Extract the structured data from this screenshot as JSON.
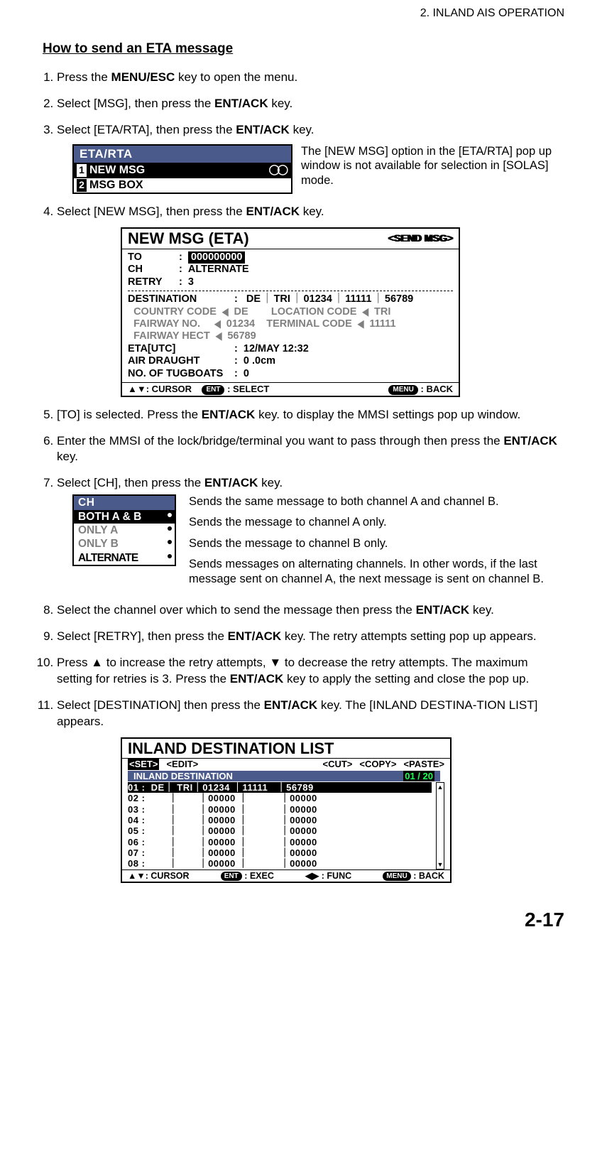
{
  "header": {
    "chapter": "2.  INLAND AIS OPERATION"
  },
  "section_title": "How to send an ETA message",
  "steps": {
    "s1": {
      "pre": "Press the ",
      "key": "MENU/ESC",
      "post": " key to open the menu."
    },
    "s2": {
      "pre": "Select [MSG], then press the ",
      "key": "ENT/ACK",
      "post": " key."
    },
    "s3": {
      "pre": "Select [ETA/RTA], then press the ",
      "key": "ENT/ACK",
      "post": " key."
    },
    "s4": {
      "pre": "Select [NEW MSG], then press the ",
      "key": "ENT/ACK",
      "post": " key."
    },
    "s5": {
      "pre": "[TO] is selected. Press the ",
      "key": "ENT/ACK",
      "post": " key. to display the MMSI settings pop up window."
    },
    "s6": {
      "pre": "Enter the MMSI of the lock/bridge/terminal you want to pass through then press the ",
      "key": "ENT/ACK",
      "post": " key."
    },
    "s7": {
      "pre": "Select [CH], then press the ",
      "key": "ENT/ACK",
      "post": " key."
    },
    "s8": {
      "pre": "Select the channel over which to send the message then press the ",
      "key": "ENT/ACK",
      "post": " key."
    },
    "s9": {
      "pre": "Select [RETRY], then press the ",
      "key": "ENT/ACK",
      "post": " key. The retry attempts setting pop up appears."
    },
    "s10": {
      "text": "Press ▲ to increase the retry attempts, ▼ to decrease the retry attempts. The maximum setting for retries is 3. Press the ",
      "key": "ENT/ACK",
      "post": " key to apply the setting and close the pop up."
    },
    "s11": {
      "pre": "Select [DESTINATION] then press the ",
      "key": "ENT/ACK",
      "post": " key. The [INLAND DESTINA-TION LIST] appears."
    }
  },
  "fig1": {
    "title": "ETA/RTA",
    "row1": {
      "num": "1",
      "label": "NEW MSG"
    },
    "row2": {
      "num": "2",
      "label": "MSG BOX"
    },
    "note": "The [NEW MSG] option in the [ETA/RTA] pop up window is not available for selection in [SOLAS] mode."
  },
  "fig2": {
    "title": "NEW MSG (ETA)",
    "send": "<SEND MSG>",
    "to": {
      "lab": "TO",
      "val": "000000000"
    },
    "ch": {
      "lab": "CH",
      "val": "ALTERNATE"
    },
    "retry": {
      "lab": "RETRY",
      "val": "3"
    },
    "dest": {
      "lab": "DESTINATION",
      "seg1": "DE",
      "seg2": "TRI",
      "seg3": "01234",
      "seg4": "11111",
      "seg5": "56789"
    },
    "l1a": "COUNTRY CODE",
    "l1a_v": "DE",
    "l1b": "LOCATION  CODE",
    "l1b_v": "TRI",
    "l2a": "FAIRWAY NO.",
    "l2a_v": "01234",
    "l2b": "TERMINAL  CODE",
    "l2b_v": "11111",
    "l3a": "FAIRWAY HECT",
    "l3a_v": "56789",
    "eta": {
      "lab": "ETA[UTC]",
      "val": "12/MAY  12:32"
    },
    "air": {
      "lab": "AIR DRAUGHT",
      "val": "0 .0cm"
    },
    "tug": {
      "lab": "NO. OF TUGBOATS",
      "val": "0"
    },
    "footer": {
      "cursor": ": CURSOR",
      "ent": "ENT",
      "select": ": SELECT",
      "menu": "MENU",
      "back": ": BACK"
    }
  },
  "ch_popup": {
    "title": "CH",
    "o1": "BOTH A  &  B",
    "o2": "ONLY  A",
    "o3": "ONLY  B",
    "o4": "ALTERNATE",
    "d1": "Sends the same message to both channel A and channel B.",
    "d2": "Sends the message to channel A only.",
    "d3": "Sends the message to channel B only.",
    "d4": "Sends messages on alternating channels. In other words, if the last message sent on channel A, the next message is sent on channel B."
  },
  "fig4": {
    "title": "INLAND DESTINATION LIST",
    "tabs": {
      "set": "<SET>",
      "edit": "<EDIT>",
      "cut": "<CUT>",
      "copy": "<COPY>",
      "paste": "<PASTE>"
    },
    "sub_label": "INLAND DESTINATION",
    "page": "01 / 20",
    "rows": [
      "01 :  DE｜ TRI｜01234 ｜11111   ｜56789",
      "02 :        ｜       ｜00000 ｜           ｜00000",
      "03 :        ｜       ｜00000 ｜           ｜00000",
      "04 :        ｜       ｜00000 ｜           ｜00000",
      "05 :        ｜       ｜00000 ｜           ｜00000",
      "06 :        ｜       ｜00000 ｜           ｜00000",
      "07 :        ｜       ｜00000 ｜           ｜00000",
      "08 :        ｜       ｜00000 ｜           ｜00000"
    ],
    "footer": {
      "cursor": ": CURSOR",
      "ent": "ENT",
      "exec": ": EXEC",
      "lr": "◀▶",
      "func": ": FUNC",
      "menu": "MENU",
      "back": ": BACK"
    }
  },
  "page_num": "2-17"
}
